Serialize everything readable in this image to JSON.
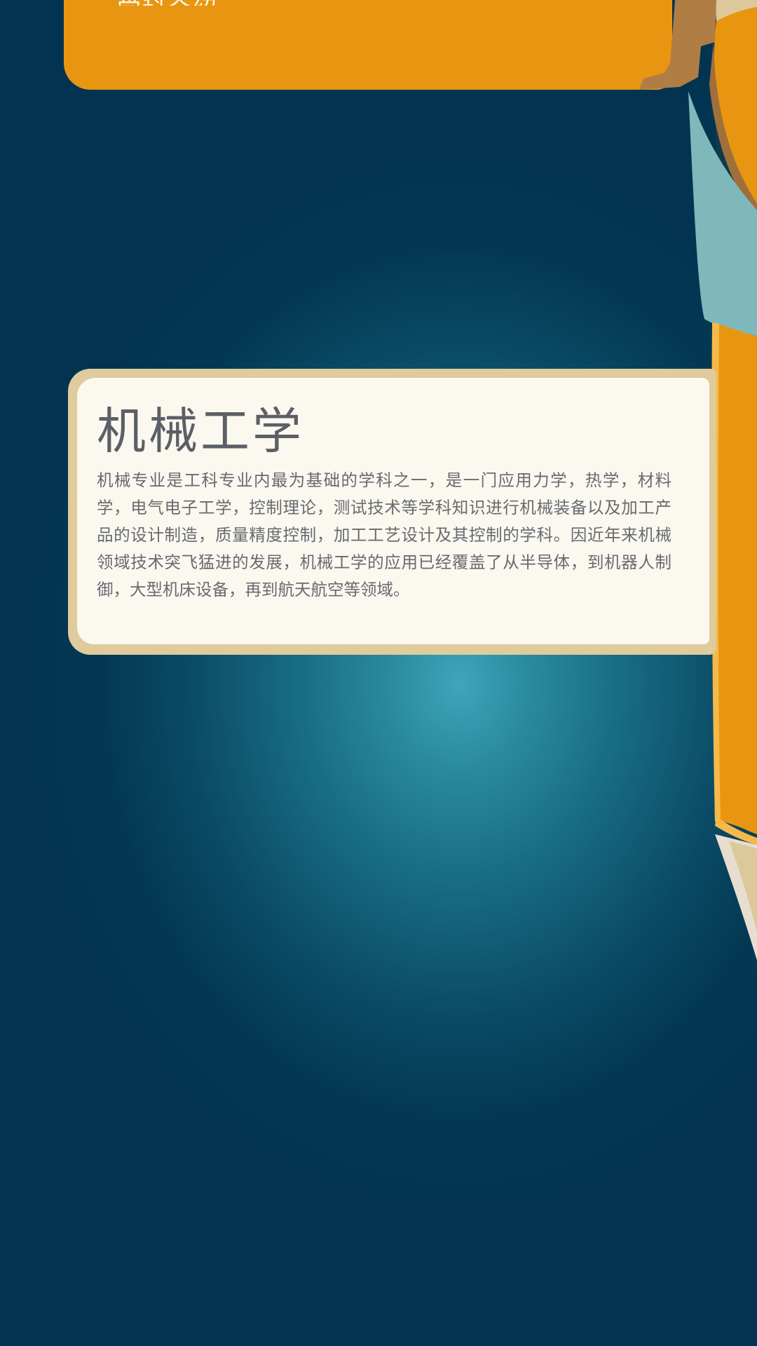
{
  "top_banner": {
    "text": "学科介绍"
  },
  "card": {
    "title": "机械工学",
    "body": "机械专业是工科专业内最为基础的学科之一，是一门应用力学，热学，材料学，电气电子工学，控制理论，测试技术等学科知识进行机械装备以及加工产品的设计制造，质量精度控制，加工工艺设计及其控制的学科。因近年来机械领域技术突飞猛进的发展，机械工学的应用已经覆盖了从半导体，到机器人制御，大型机床设备，再到航天航空等领域。"
  },
  "colors": {
    "background_center": "#3ea6ba",
    "background_edge": "#023451",
    "banner_orange": "#e89612",
    "card_border": "#dfcb9c",
    "card_fill": "#fbf8ef",
    "title_text": "#5c5f66",
    "body_text": "#676a70"
  }
}
